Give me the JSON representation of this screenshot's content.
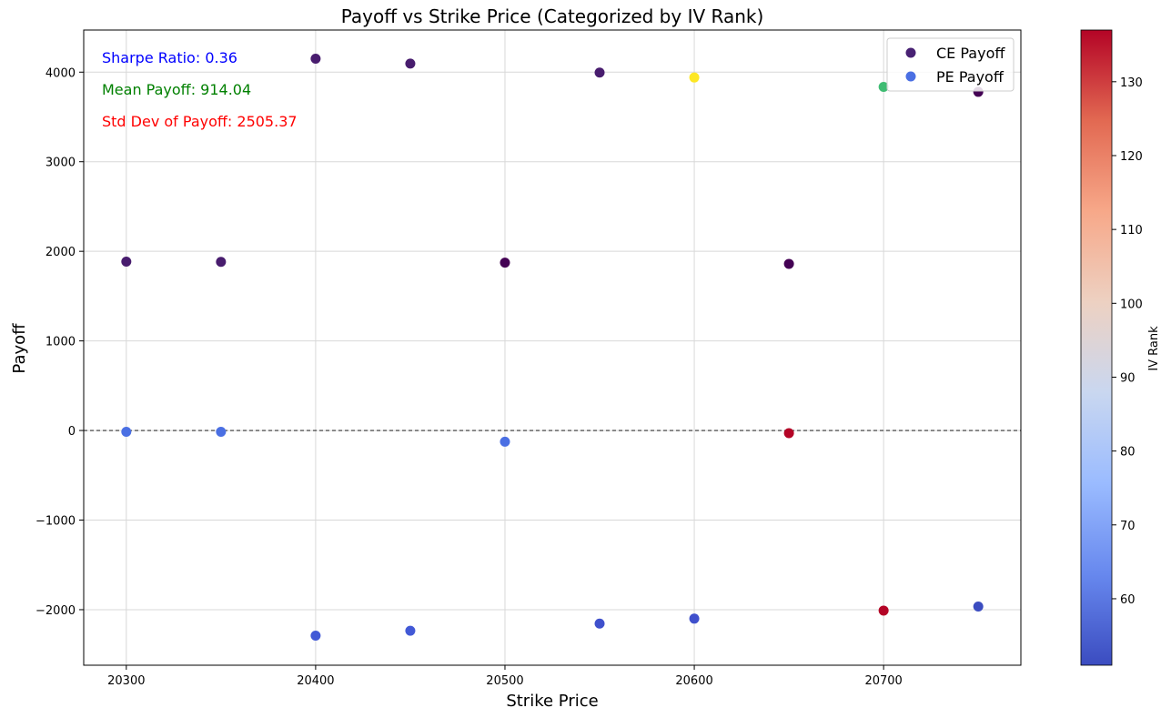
{
  "chart_data": {
    "type": "scatter",
    "title": "Payoff vs Strike Price (Categorized by IV Rank)",
    "xlabel": "Strike Price",
    "ylabel": "Payoff",
    "xlim": [
      20277.5,
      20772.5
    ],
    "ylim": [
      -2620,
      4470
    ],
    "x_ticks": [
      20300,
      20400,
      20500,
      20600,
      20700
    ],
    "y_ticks": [
      -2000,
      -1000,
      0,
      1000,
      2000,
      3000,
      4000
    ],
    "x_tick_labels": [
      "20300",
      "20400",
      "20500",
      "20600",
      "20700"
    ],
    "y_tick_labels": [
      "−2000",
      "−1000",
      "0",
      "1000",
      "2000",
      "3000",
      "4000"
    ],
    "grid": true,
    "zero_line": 0,
    "legend_position": "top-right",
    "legend": [
      {
        "label": "CE Payoff",
        "color": "#482173"
      },
      {
        "label": "PE Payoff",
        "color": "#4a6fe3"
      }
    ],
    "annotations": [
      {
        "text": "Sharpe Ratio: 0.36",
        "color": "#0000ff"
      },
      {
        "text": "Mean Payoff: 914.04",
        "color": "#008000"
      },
      {
        "text": "Std Dev of Payoff: 2505.37",
        "color": "#ff0000"
      }
    ],
    "series": [
      {
        "name": "CE Payoff",
        "points": [
          {
            "x": 20300,
            "y": 1885,
            "color": "#481c6e"
          },
          {
            "x": 20350,
            "y": 1882,
            "color": "#481c6e"
          },
          {
            "x": 20400,
            "y": 4150,
            "color": "#481c6e"
          },
          {
            "x": 20450,
            "y": 4095,
            "color": "#481c6e"
          },
          {
            "x": 20500,
            "y": 1873,
            "color": "#440154"
          },
          {
            "x": 20550,
            "y": 3995,
            "color": "#481c6e"
          },
          {
            "x": 20600,
            "y": 3940,
            "color": "#fde725"
          },
          {
            "x": 20650,
            "y": 1860,
            "color": "#440154"
          },
          {
            "x": 20700,
            "y": 3835,
            "color": "#3fbc73"
          },
          {
            "x": 20750,
            "y": 3780,
            "color": "#440154"
          }
        ]
      },
      {
        "name": "PE Payoff",
        "points": [
          {
            "x": 20300,
            "y": -15,
            "color": "#4a6fe3"
          },
          {
            "x": 20350,
            "y": -15,
            "color": "#4a6fe3"
          },
          {
            "x": 20400,
            "y": -2290,
            "color": "#4259d6"
          },
          {
            "x": 20450,
            "y": -2235,
            "color": "#4259d6"
          },
          {
            "x": 20500,
            "y": -125,
            "color": "#4a6fe3"
          },
          {
            "x": 20550,
            "y": -2155,
            "color": "#3f50cc"
          },
          {
            "x": 20600,
            "y": -2100,
            "color": "#3f50cc"
          },
          {
            "x": 20650,
            "y": -30,
            "color": "#b40426"
          },
          {
            "x": 20700,
            "y": -2010,
            "color": "#b40426"
          },
          {
            "x": 20750,
            "y": -1965,
            "color": "#3b4cc0"
          }
        ]
      }
    ],
    "colorbar": {
      "label": "IV Rank",
      "range": [
        51,
        137
      ],
      "ticks": [
        60,
        70,
        80,
        90,
        100,
        110,
        120,
        130
      ],
      "tick_labels": [
        "60",
        "70",
        "80",
        "90",
        "100",
        "110",
        "120",
        "130"
      ],
      "colors": [
        "#3b4cc0",
        "#6788ee",
        "#9abbff",
        "#c9d7f0",
        "#edd1c2",
        "#f7a889",
        "#e26952",
        "#b40426"
      ]
    }
  }
}
